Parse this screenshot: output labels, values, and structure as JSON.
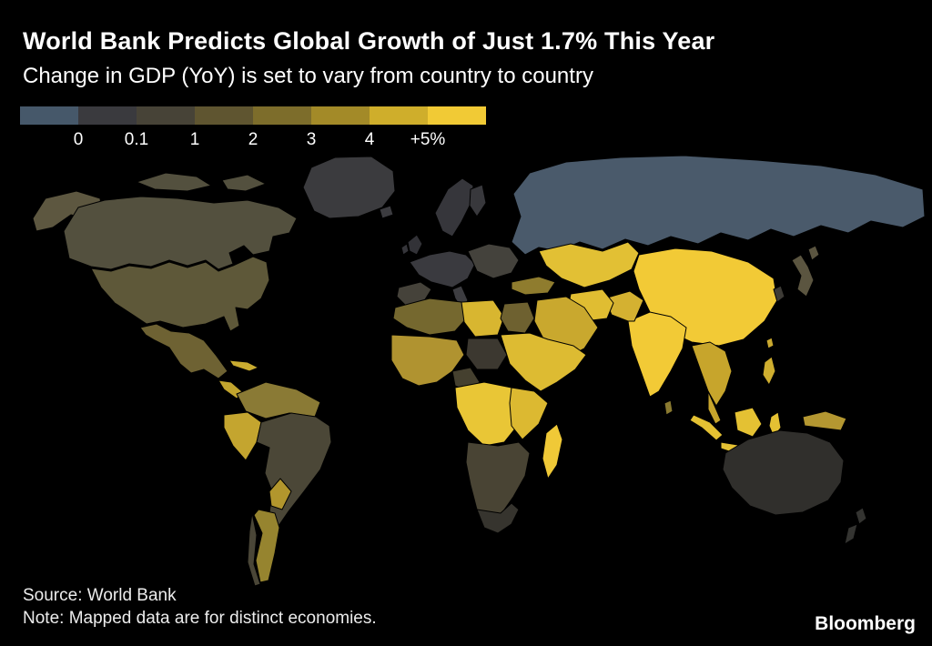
{
  "header": {
    "title": "World Bank Predicts Global Growth of Just 1.7% This Year",
    "subtitle": "Change in GDP (YoY) is set to vary from country to country"
  },
  "legend": {
    "labels": [
      "0",
      "0.1",
      "1",
      "2",
      "3",
      "4",
      "+5%"
    ],
    "colors": [
      "#46586a",
      "#3a3a3e",
      "#474337",
      "#5f5530",
      "#7d6d2b",
      "#a38a28",
      "#cfae2b",
      "#f1ca35"
    ]
  },
  "footer": {
    "source": "Source: World Bank",
    "note": "Note: Mapped data are for distinct economies.",
    "brand": "Bloomberg"
  },
  "map": {
    "region_colors": {
      "greenland": "#3b3b3e",
      "iceland": "#3c3c40",
      "alaska": "#5d5740",
      "canada": "#53503e",
      "usa": "#5e5839",
      "mexico": "#6e6233",
      "central-america": "#c2a52e",
      "caribbean": "#c9ab30",
      "north-south-america": "#8a7a35",
      "peru-ecuador": "#c4a52f",
      "brazil": "#4b4737",
      "bolivia-paraguay": "#b2962d",
      "argentina": "#96842f",
      "chile": "#4a4637",
      "uk": "#323237",
      "ireland": "#35353a",
      "scandinavia": "#36363b",
      "finland": "#38383c",
      "western-europe": "#3a3a3f",
      "iberia": "#45423a",
      "italy": "#3d3d41",
      "eastern-europe": "#44423c",
      "russia": "#4a5a6b",
      "kazakhstan": "#e2c034",
      "china": "#f2ca36",
      "india": "#f2ca36",
      "pakistan-afghanistan": "#d4b131",
      "iran": "#e0bd32",
      "turkey": "#8f7c2e",
      "saudi": "#c9a82e",
      "north-africa": "#75682f",
      "libya": "#d8b630",
      "egypt": "#6e6130",
      "west-africa": "#b09330",
      "nigeria": "#45402f",
      "chad": "#3c3830",
      "sudan-horn": "#ddbb32",
      "central-africa": "#e9c636",
      "east-africa": "#dcb931",
      "southern-africa": "#494434",
      "south-africa": "#36342e",
      "madagascar": "#f0c937",
      "se-asia": "#c7a52c",
      "philippines": "#cfae2f",
      "indonesia": "#e4c133",
      "new-guinea": "#b49731",
      "sri-lanka": "#8a7a30",
      "japan": "#5b5540",
      "korea": "#3d3b36",
      "taiwan": "#caa930",
      "australia": "#302f2c",
      "new-zealand": "#343431"
    }
  },
  "chart_data": {
    "type": "heatmap",
    "variant": "choropleth_world_map",
    "title": "World Bank Predicts Global Growth of Just 1.7% This Year",
    "subtitle": "Change in GDP (YoY) is set to vary from country to country",
    "unit": "GDP growth, % YoY",
    "colorscale": {
      "tick_labels": [
        "0",
        "0.1",
        "1",
        "2",
        "3",
        "4",
        "+5%"
      ],
      "colors": [
        "#46586a",
        "#3a3a3e",
        "#474337",
        "#5f5530",
        "#7d6d2b",
        "#a38a28",
        "#cfae2b",
        "#f1ca35"
      ],
      "note": "left = 0 or below (blue-gray), right = +5% and above (bright yellow)"
    },
    "regions": [
      {
        "name": "Russia",
        "band": "<=0"
      },
      {
        "name": "Greenland",
        "band": "0-0.1"
      },
      {
        "name": "Iceland",
        "band": "0-0.1"
      },
      {
        "name": "United Kingdom / Ireland",
        "band": "0-0.1"
      },
      {
        "name": "Scandinavia",
        "band": "0-0.1"
      },
      {
        "name": "Western Europe",
        "band": "0-0.1"
      },
      {
        "name": "Eastern Europe",
        "band": "0.1-1"
      },
      {
        "name": "Iberia",
        "band": "0.1-1"
      },
      {
        "name": "Canada",
        "band": "0.1-1"
      },
      {
        "name": "United States / Alaska",
        "band": "0.1-1"
      },
      {
        "name": "Brazil",
        "band": "0.1-1"
      },
      {
        "name": "Chile",
        "band": "0.1-1"
      },
      {
        "name": "Japan",
        "band": "0.1-1"
      },
      {
        "name": "South Korea",
        "band": "0-0.1"
      },
      {
        "name": "Australia",
        "band": "0-0.1"
      },
      {
        "name": "New Zealand",
        "band": "0-0.1"
      },
      {
        "name": "South Africa",
        "band": "0-0.1"
      },
      {
        "name": "Nigeria / Sahel patches",
        "band": "0-0.1"
      },
      {
        "name": "Mexico",
        "band": "1-2"
      },
      {
        "name": "North Africa (Morocco / Algeria)",
        "band": "1-2"
      },
      {
        "name": "Egypt",
        "band": "1-2"
      },
      {
        "name": "Southern Africa",
        "band": "0.1-1"
      },
      {
        "name": "Colombia / Venezuela",
        "band": "2-3"
      },
      {
        "name": "Argentina",
        "band": "2-3"
      },
      {
        "name": "Turkey",
        "band": "2-3"
      },
      {
        "name": "Sri Lanka",
        "band": "2-3"
      },
      {
        "name": "Peru / Ecuador",
        "band": "3-4"
      },
      {
        "name": "Bolivia / Paraguay",
        "band": "3-4"
      },
      {
        "name": "West Africa",
        "band": "3-4"
      },
      {
        "name": "Central America / Caribbean",
        "band": "3-4"
      },
      {
        "name": "Saudi Arabia / Gulf",
        "band": "3-4"
      },
      {
        "name": "Southeast Asia",
        "band": "3-4"
      },
      {
        "name": "Philippines",
        "band": "3-4"
      },
      {
        "name": "New Guinea",
        "band": "3-4"
      },
      {
        "name": "Libya",
        "band": "4-5"
      },
      {
        "name": "Sudan / Horn of Africa",
        "band": "4-5"
      },
      {
        "name": "East Africa",
        "band": "4-5"
      },
      {
        "name": "Iran",
        "band": "4-5"
      },
      {
        "name": "Kazakhstan / Central Asia",
        "band": "4-5"
      },
      {
        "name": "Indonesia",
        "band": "4-5"
      },
      {
        "name": "China",
        "band": "+5"
      },
      {
        "name": "India",
        "band": "+5"
      },
      {
        "name": "Central Africa (DRC)",
        "band": "+5"
      },
      {
        "name": "Madagascar",
        "band": "+5"
      }
    ],
    "source": "World Bank",
    "note": "Mapped data are for distinct economies."
  }
}
